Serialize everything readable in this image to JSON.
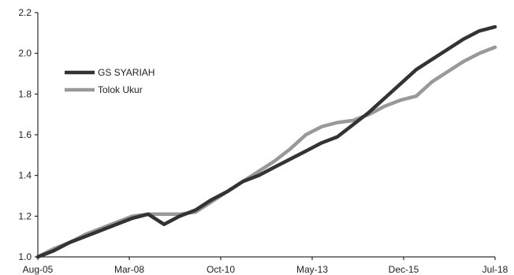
{
  "chart_data": {
    "type": "line",
    "title": "",
    "xlabel": "",
    "ylabel": "",
    "ylim": [
      1.0,
      2.2
    ],
    "yticks": [
      "1.0",
      "1.2",
      "1.4",
      "1.6",
      "1.8",
      "2.0",
      "2.2"
    ],
    "xticks": [
      "Aug-05",
      "Mar-08",
      "Oct-10",
      "May-13",
      "Dec-15",
      "Jul-18"
    ],
    "grid": false,
    "legend_position": "upper-left",
    "x": [
      "Aug-05",
      "Feb-06",
      "Aug-06",
      "Feb-07",
      "Aug-07",
      "Feb-08",
      "Aug-08",
      "Nov-08",
      "Dec-08",
      "Jan-09",
      "Feb-09",
      "Aug-09",
      "Feb-10",
      "Aug-10",
      "Feb-11",
      "Aug-11",
      "Feb-12",
      "Aug-12",
      "Feb-13",
      "Aug-13",
      "Feb-14",
      "Aug-14",
      "Feb-15",
      "Aug-15",
      "Feb-16",
      "Aug-16",
      "Feb-17",
      "Aug-17",
      "Feb-18",
      "Jul-18"
    ],
    "series": [
      {
        "name": "GS SYARIAH",
        "color": "#333333",
        "values": [
          1.0,
          1.03,
          1.07,
          1.1,
          1.13,
          1.16,
          1.19,
          1.21,
          1.16,
          1.2,
          1.23,
          1.28,
          1.32,
          1.37,
          1.4,
          1.44,
          1.48,
          1.52,
          1.56,
          1.59,
          1.65,
          1.71,
          1.78,
          1.85,
          1.92,
          1.97,
          2.02,
          2.07,
          2.11,
          2.13
        ]
      },
      {
        "name": "Tolok Ukur",
        "color": "#999999",
        "values": [
          1.0,
          1.04,
          1.07,
          1.11,
          1.14,
          1.17,
          1.2,
          1.21,
          1.21,
          1.21,
          1.22,
          1.27,
          1.32,
          1.37,
          1.42,
          1.47,
          1.53,
          1.6,
          1.64,
          1.66,
          1.67,
          1.7,
          1.74,
          1.77,
          1.79,
          1.86,
          1.91,
          1.96,
          2.0,
          2.03
        ]
      }
    ]
  }
}
